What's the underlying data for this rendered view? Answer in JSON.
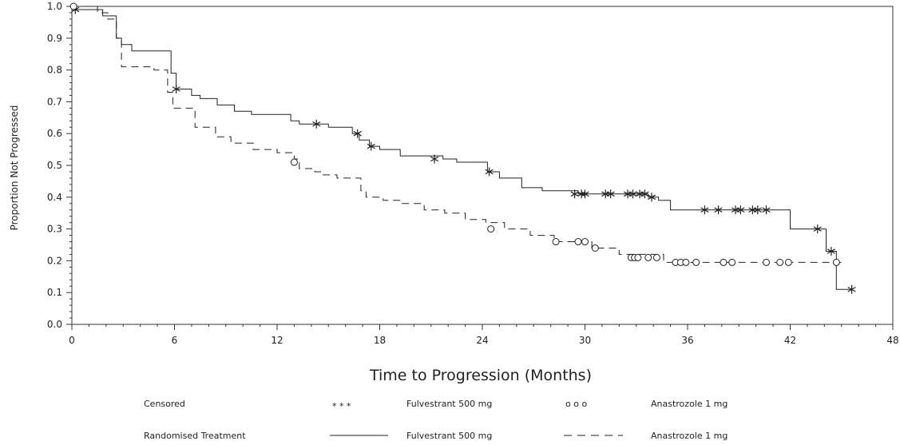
{
  "chart_data": {
    "type": "line",
    "subtype": "kaplan-meier step plot",
    "xlabel": "Time to Progression (Months)",
    "ylabel": "Proportion Not Progressed",
    "xlim": [
      0,
      48
    ],
    "ylim": [
      0,
      1.0
    ],
    "xticks": [
      "0",
      "6",
      "12",
      "18",
      "24",
      "30",
      "36",
      "42",
      "48"
    ],
    "yticks": [
      "0.0",
      "0.1",
      "0.2",
      "0.3",
      "0.4",
      "0.5",
      "0.6",
      "0.7",
      "0.8",
      "0.9",
      "1.0"
    ],
    "grid": false,
    "series": [
      {
        "name": "Fulvestrant 500 mg",
        "style": "solid",
        "x": [
          0,
          1.5,
          1.8,
          2.6,
          2.9,
          3.5,
          4.0,
          4.5,
          5.5,
          5.8,
          6.1,
          7.0,
          7.5,
          8.5,
          9.5,
          10.5,
          11.2,
          12.8,
          13.3,
          14.3,
          15.0,
          16.4,
          16.8,
          17.4,
          18.0,
          19.2,
          20.5,
          21.7,
          22.5,
          24.3,
          25.0,
          26.3,
          27.5,
          29.6,
          33.7,
          34.3,
          35.0,
          42.0,
          43.6,
          44.1,
          44.7,
          45.6
        ],
        "y": [
          0.99,
          0.99,
          0.97,
          0.9,
          0.88,
          0.86,
          0.86,
          0.86,
          0.86,
          0.79,
          0.74,
          0.72,
          0.71,
          0.69,
          0.67,
          0.66,
          0.66,
          0.64,
          0.63,
          0.63,
          0.62,
          0.6,
          0.58,
          0.56,
          0.55,
          0.53,
          0.53,
          0.52,
          0.51,
          0.48,
          0.46,
          0.43,
          0.42,
          0.41,
          0.4,
          0.39,
          0.36,
          0.3,
          0.3,
          0.23,
          0.11,
          0.11
        ],
        "censored_x": [
          0.2,
          6.1,
          14.3,
          16.7,
          17.5,
          21.2,
          24.4,
          29.4,
          29.8,
          30.0,
          31.2,
          31.5,
          32.5,
          32.8,
          33.2,
          33.5,
          33.9,
          37.0,
          37.8,
          38.8,
          39.1,
          39.8,
          40.1,
          40.6,
          43.6,
          44.4,
          45.6
        ],
        "censored_y": [
          0.99,
          0.74,
          0.63,
          0.6,
          0.56,
          0.52,
          0.48,
          0.41,
          0.41,
          0.41,
          0.41,
          0.41,
          0.41,
          0.41,
          0.41,
          0.41,
          0.4,
          0.36,
          0.36,
          0.36,
          0.36,
          0.36,
          0.36,
          0.36,
          0.3,
          0.23,
          0.11
        ]
      },
      {
        "name": "Anastrozole 1 mg",
        "style": "dashed",
        "x": [
          0,
          1.5,
          2.1,
          2.6,
          2.9,
          4.0,
          4.8,
          5.6,
          5.9,
          7.2,
          8.4,
          9.3,
          10.6,
          12.0,
          13.0,
          13.3,
          14.2,
          14.6,
          15.5,
          16.9,
          17.2,
          18.2,
          19.2,
          20.6,
          21.8,
          23.0,
          24.2,
          25.3,
          26.8,
          28.2,
          30.4,
          32.0,
          34.6,
          42.8,
          45.0
        ],
        "y": [
          1.0,
          0.98,
          0.96,
          0.9,
          0.81,
          0.81,
          0.8,
          0.73,
          0.68,
          0.62,
          0.59,
          0.57,
          0.55,
          0.54,
          0.52,
          0.49,
          0.48,
          0.47,
          0.46,
          0.42,
          0.4,
          0.39,
          0.38,
          0.36,
          0.35,
          0.33,
          0.32,
          0.3,
          0.28,
          0.26,
          0.24,
          0.22,
          0.195,
          0.195,
          0.195
        ],
        "censored_x": [
          0.1,
          13.0,
          24.5,
          28.3,
          29.6,
          30.0,
          30.6,
          32.7,
          32.9,
          33.1,
          33.7,
          34.2,
          35.3,
          35.6,
          35.9,
          36.5,
          38.1,
          38.6,
          40.6,
          41.4,
          41.9,
          44.7
        ],
        "censored_y": [
          1.0,
          0.51,
          0.3,
          0.26,
          0.26,
          0.26,
          0.24,
          0.21,
          0.21,
          0.21,
          0.21,
          0.21,
          0.195,
          0.195,
          0.195,
          0.195,
          0.195,
          0.195,
          0.195,
          0.195,
          0.195,
          0.195
        ]
      }
    ],
    "legend": {
      "placement": "bottom",
      "rows": [
        {
          "label": "Censored",
          "items": [
            {
              "symbol": "asterisk",
              "symbol_text": "*  *  *",
              "text": "Fulvestrant 500 mg"
            },
            {
              "symbol": "circle",
              "symbol_text": "o  o  o",
              "text": "Anastrozole 1 mg"
            }
          ]
        },
        {
          "label": "Randomised Treatment",
          "items": [
            {
              "symbol": "solid-line",
              "text": "Fulvestrant 500 mg"
            },
            {
              "symbol": "dashed-line",
              "text": "Anastrozole 1 mg"
            }
          ]
        }
      ]
    },
    "colors": {
      "line": "#222222",
      "axis": "#333333",
      "background": "#ffffff"
    }
  }
}
